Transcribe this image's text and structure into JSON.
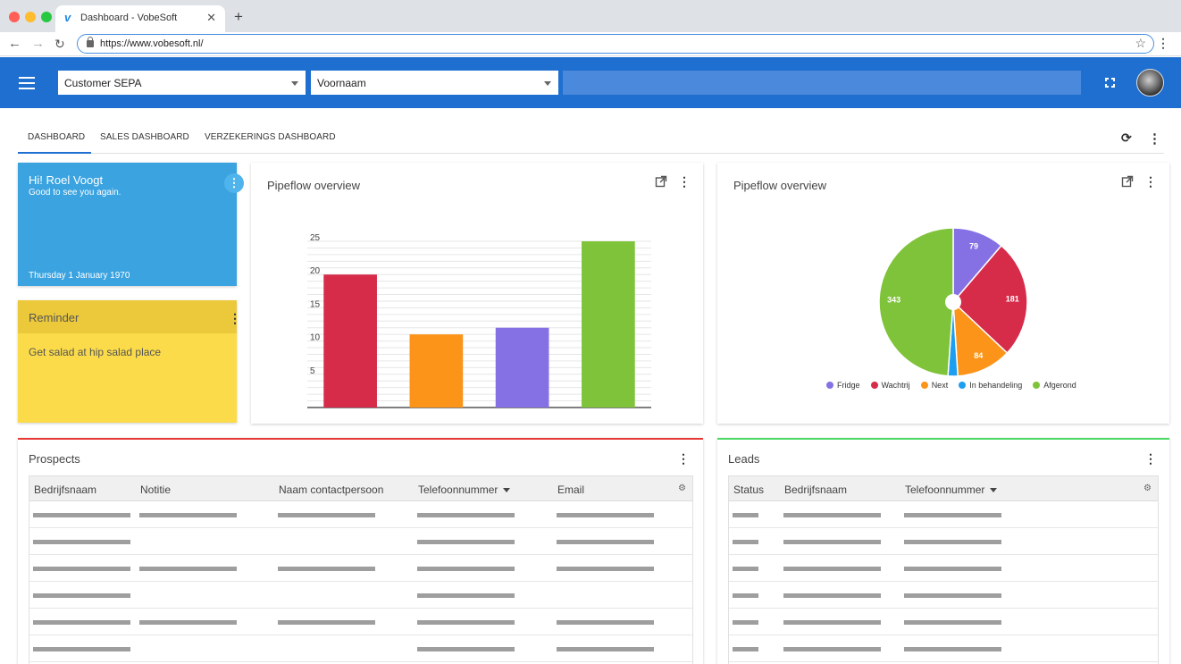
{
  "browser": {
    "tab_title": "Dashboard - VobeSoft",
    "favicon": "v",
    "close_glyph": "✕",
    "new_tab_glyph": "+",
    "url": "https://www.vobesoft.nl/",
    "icons": [
      "back-arrow-icon",
      "forward-arrow-icon",
      "reload-icon",
      "lock-icon",
      "star-icon",
      "menu-dots-icon"
    ]
  },
  "header": {
    "color": "#1e6fd0",
    "customer_select": "Customer SEPA",
    "name_select": "Voornaam"
  },
  "tabs": [
    {
      "label": "DASHBOARD",
      "active": true
    },
    {
      "label": "SALES DASHBOARD",
      "active": false
    },
    {
      "label": "VERZEKERINGS DASHBOARD",
      "active": false
    }
  ],
  "welcome": {
    "title": "Hi! Roel Voogt",
    "subtitle": "Good to see you again.",
    "date": "Thursday 1 January 1970",
    "color": "#3aa3e0"
  },
  "reminder": {
    "title": "Reminder",
    "text": "Get salad at hip salad place",
    "color": "#fbdb4a"
  },
  "bar_chart": {
    "title": "Pipeflow overview"
  },
  "pie_chart": {
    "title": "Pipeflow overview"
  },
  "chart_data": [
    {
      "type": "bar",
      "title": "Pipeflow overview",
      "categories": [
        "",
        "",
        "",
        ""
      ],
      "values": [
        20,
        11,
        12,
        25
      ],
      "colors": [
        "#d62c4a",
        "#fb9419",
        "#8671e4",
        "#7fc33a"
      ],
      "yticks": [
        5,
        10,
        15,
        20,
        25
      ],
      "ylim": [
        0,
        25
      ],
      "grid": true
    },
    {
      "type": "pie",
      "title": "Pipeflow overview",
      "labels": [
        "Fridge",
        "Wachtrij",
        "Next",
        "In behandeling",
        "Afgerond"
      ],
      "values": [
        79,
        181,
        84,
        15,
        343
      ],
      "colors": [
        "#8671e4",
        "#d62c4a",
        "#fb9419",
        "#1e9ef0",
        "#7fc33a"
      ],
      "data_labels": [
        "79",
        "181",
        "84",
        "",
        "343"
      ],
      "legend": "bottom"
    }
  ],
  "prospects": {
    "title": "Prospects",
    "accent": "#e53935",
    "columns": [
      "Bedrijfsnaam",
      "Notitie",
      "Naam contactpersoon",
      "Telefoonnummer",
      "Email"
    ],
    "sorted_column": "Telefoonnummer",
    "rows": [
      [
        true,
        true,
        true,
        true,
        true
      ],
      [
        true,
        false,
        false,
        true,
        true
      ],
      [
        true,
        true,
        true,
        true,
        true
      ],
      [
        true,
        false,
        false,
        true,
        false
      ],
      [
        true,
        true,
        true,
        true,
        true
      ],
      [
        true,
        false,
        false,
        true,
        true
      ]
    ]
  },
  "leads": {
    "title": "Leads",
    "accent": "#4cd964",
    "columns": [
      "Status",
      "Bedrijfsnaam",
      "Telefoonnummer"
    ],
    "sorted_column": "Telefoonnummer",
    "rows": [
      [
        true,
        true,
        true
      ],
      [
        true,
        true,
        true
      ],
      [
        true,
        true,
        true
      ],
      [
        true,
        true,
        true
      ],
      [
        true,
        true,
        true
      ],
      [
        true,
        true,
        true
      ]
    ]
  }
}
